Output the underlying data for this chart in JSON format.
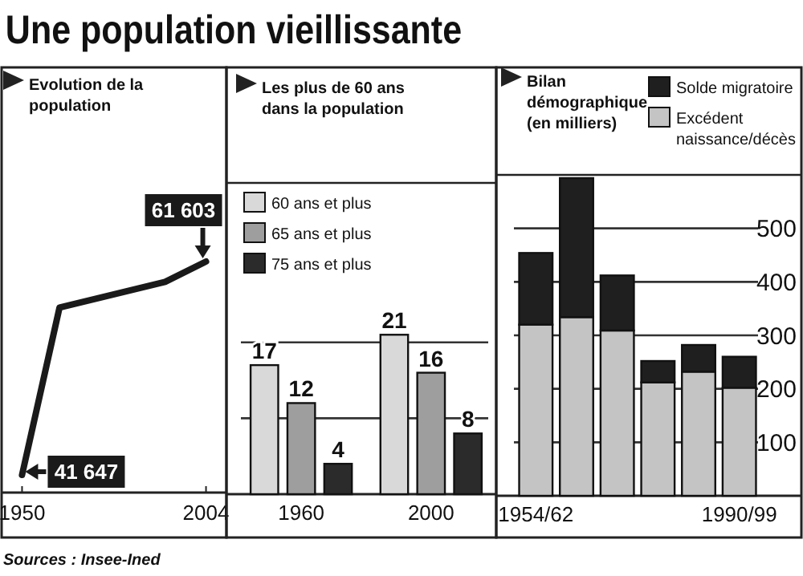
{
  "chart_data": [
    {
      "type": "line",
      "title": "Une population vieillissante",
      "subtitle": "Evolution de la population",
      "x": [
        1950,
        1961,
        1992,
        2004
      ],
      "values": [
        41647,
        57300,
        59700,
        61603
      ],
      "value_labels": [
        "41 647",
        null,
        null,
        "61 603"
      ],
      "color": "#1a1a1a",
      "xlim": [
        1944,
        2010
      ],
      "xticks": [
        1950,
        2004
      ],
      "annotations": [
        "Sources : Insee-Ined"
      ]
    },
    {
      "type": "bar",
      "title": "Les plus de 60 ans dans la population",
      "categories": [
        "1960",
        "2000"
      ],
      "series": [
        {
          "name": "60 ans et plus",
          "color": "#d9d9d9",
          "values": [
            17,
            21
          ]
        },
        {
          "name": "65 ans et plus",
          "color": "#9e9e9e",
          "values": [
            12,
            16
          ]
        },
        {
          "name": "75 ans et plus",
          "color": "#2b2b2b",
          "values": [
            4,
            8
          ]
        }
      ],
      "ylim": [
        0,
        41
      ],
      "yticks": [
        {
          "value": 10,
          "label": null
        },
        {
          "value": 20,
          "label": null
        }
      ],
      "grid": "y",
      "tick_labels": "x",
      "data_labels": true,
      "legend": "top left"
    },
    {
      "type": "bar",
      "stacked": true,
      "title": "Bilan démographique (en milliers)",
      "categories": [
        "1954/62",
        null,
        null,
        null,
        null,
        "1990/99"
      ],
      "series": [
        {
          "name": "Excédent naissance/décès",
          "color": "#c4c4c4",
          "values": [
            320,
            334,
            309,
            212,
            232,
            202
          ]
        },
        {
          "name": "Solde migratoire",
          "color": "#1f1f1f",
          "values": [
            134,
            260,
            103,
            40,
            50,
            58
          ]
        }
      ],
      "ylim": [
        0,
        600
      ],
      "yticks": [
        100,
        200,
        300,
        400,
        500
      ],
      "grid": "y",
      "legend": "top right"
    }
  ]
}
